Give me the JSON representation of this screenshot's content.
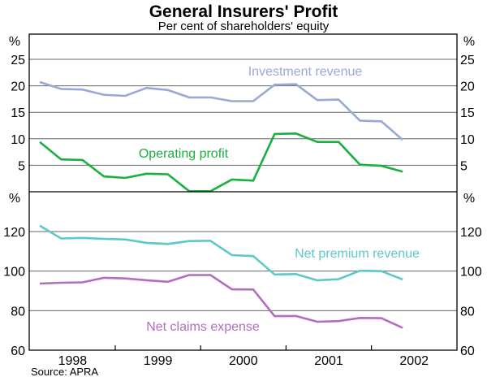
{
  "chart_data": {
    "type": "line",
    "title": "General Insurers' Profit",
    "subtitle": "Per cent of shareholders' equity",
    "source": "Source: APRA",
    "x": [
      "Mar-98",
      "Jun-98",
      "Sep-98",
      "Dec-98",
      "Mar-99",
      "Jun-99",
      "Sep-99",
      "Dec-99",
      "Mar-00",
      "Jun-00",
      "Sep-00",
      "Dec-00",
      "Mar-01",
      "Jun-01",
      "Sep-01",
      "Dec-01",
      "Mar-02",
      "Jun-02"
    ],
    "x_tick_labels": [
      "1998",
      "1999",
      "2000",
      "2001",
      "2002"
    ],
    "panels": [
      {
        "name": "top",
        "unit_label": "%",
        "ylim": [
          0,
          25
        ],
        "yticks": [
          5,
          10,
          15,
          20,
          25
        ],
        "ytick_labels": [
          "5",
          "10",
          "15",
          "20",
          "25"
        ],
        "grid": true,
        "series": [
          {
            "name": "Investment revenue",
            "color": "#99a8d8",
            "values": [
              20.7,
              19.4,
              19.3,
              18.3,
              18.1,
              19.6,
              19.2,
              17.8,
              17.8,
              17.1,
              17.1,
              20.2,
              20.3,
              17.3,
              17.4,
              13.4,
              13.3,
              9.8
            ]
          },
          {
            "name": "Operating profit",
            "color": "#19b040",
            "values": [
              9.4,
              6.1,
              6.0,
              2.9,
              2.6,
              3.4,
              3.3,
              0.1,
              0.1,
              2.3,
              2.1,
              10.9,
              11.0,
              9.4,
              9.4,
              5.1,
              4.9,
              3.8
            ]
          }
        ]
      },
      {
        "name": "bottom",
        "unit_label": "%",
        "ylim": [
          60,
          140
        ],
        "yticks": [
          60,
          80,
          100,
          120
        ],
        "ytick_labels": [
          "60",
          "80",
          "100",
          "120"
        ],
        "grid": true,
        "series": [
          {
            "name": "Net premium revenue",
            "color": "#5cc8c8",
            "values": [
              123.0,
              116.5,
              116.8,
              116.3,
              116.0,
              114.3,
              113.7,
              115.2,
              115.3,
              108.1,
              107.6,
              98.3,
              98.5,
              95.3,
              95.9,
              100.2,
              100.0,
              95.8
            ]
          },
          {
            "name": "Net claims expense",
            "color": "#b46cc0",
            "values": [
              93.7,
              94.1,
              94.3,
              96.6,
              96.3,
              95.4,
              94.6,
              98.0,
              98.0,
              90.8,
              90.7,
              77.2,
              77.3,
              74.4,
              74.7,
              76.3,
              76.2,
              71.3
            ]
          }
        ]
      }
    ]
  }
}
